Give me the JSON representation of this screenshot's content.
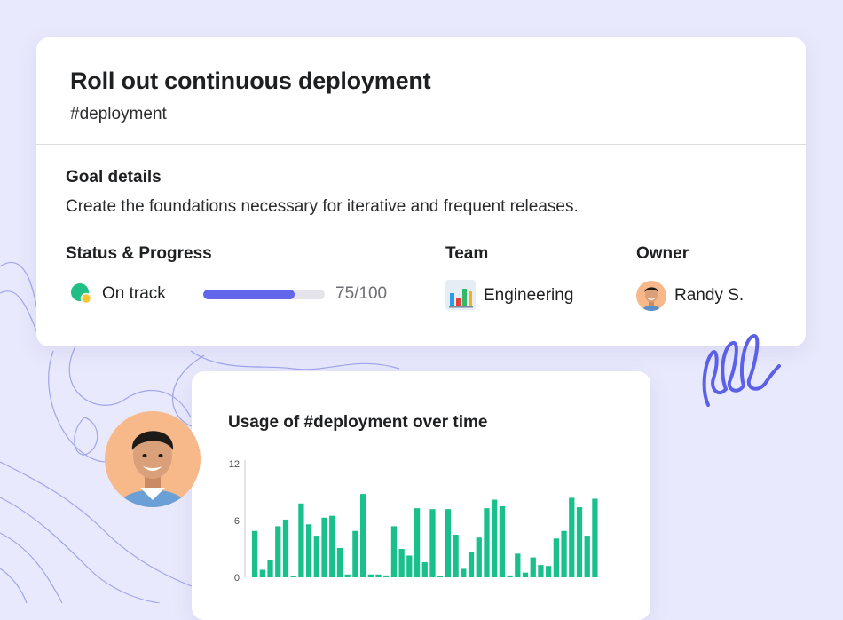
{
  "goal": {
    "title": "Roll out continuous deployment",
    "tag": "#deployment",
    "details_heading": "Goal details",
    "description": "Create the foundations necessary for iterative and frequent releases.",
    "status_heading": "Status & Progress",
    "status_label": "On track",
    "status_icon": "on-track-status-icon",
    "progress_value": 75,
    "progress_max": 100,
    "progress_text": "75/100",
    "team_heading": "Team",
    "team_name": "Engineering",
    "team_icon": "bar-chart-icon",
    "owner_heading": "Owner",
    "owner_name": "Randy S."
  },
  "colors": {
    "background": "#e8e9fc",
    "accent": "#6166ea",
    "status_green": "#1fbf86",
    "status_yellow": "#f7c531",
    "bar_green": "#19c08c"
  },
  "chart_data": {
    "type": "bar",
    "title": "Usage of #deployment over time",
    "xlabel": "",
    "ylabel": "",
    "ylim": [
      0,
      12
    ],
    "yticks": [
      0,
      6,
      12
    ],
    "values": [
      4.9,
      0.8,
      1.8,
      5.4,
      6.1,
      0.1,
      7.8,
      5.6,
      4.4,
      6.3,
      6.5,
      3.1,
      0.3,
      4.9,
      8.8,
      0.3,
      0.3,
      0.2,
      5.4,
      3.0,
      2.3,
      7.3,
      1.6,
      7.2,
      0.0,
      7.2,
      4.5,
      0.9,
      2.7,
      4.2,
      7.3,
      8.2,
      7.5,
      0.2,
      2.5,
      0.5,
      2.1,
      1.3,
      1.2,
      4.1,
      4.9,
      8.4,
      7.4,
      4.4,
      8.3
    ]
  }
}
